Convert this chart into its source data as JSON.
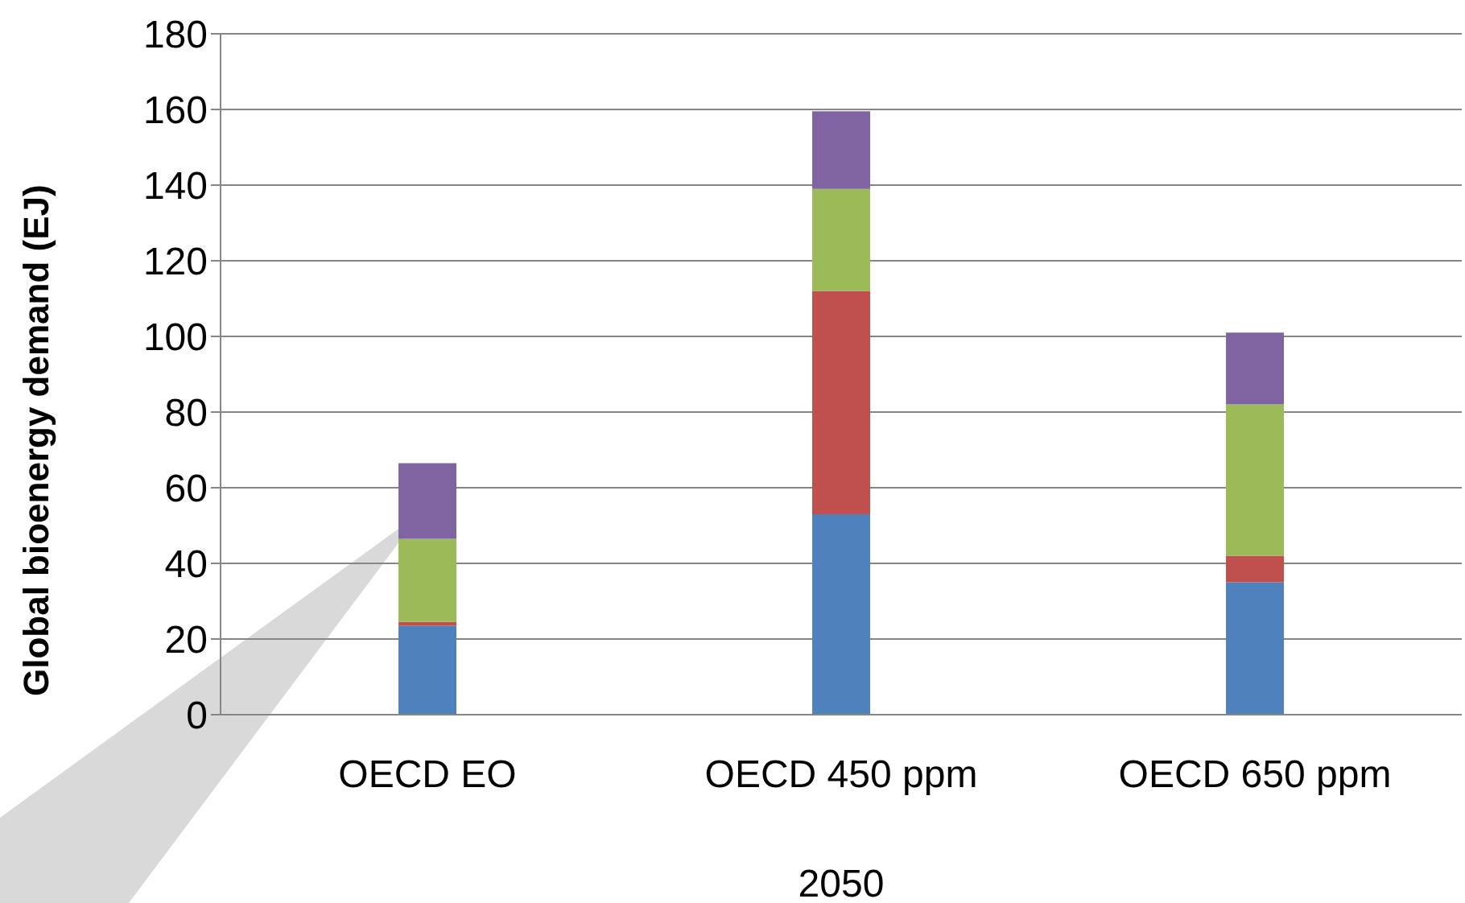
{
  "chart_data": {
    "type": "bar",
    "stacked": true,
    "ylabel": "Global bioenergy demand (EJ)",
    "xlabel": "2050",
    "categories": [
      "OECD EO",
      "OECD 450 ppm",
      "OECD 650 ppm"
    ],
    "series": [
      {
        "color": "#4f81bd",
        "values": [
          23.5,
          53,
          35
        ]
      },
      {
        "color": "#c0504d",
        "values": [
          1,
          59,
          7
        ]
      },
      {
        "color": "#9bbb59",
        "values": [
          22,
          27,
          40
        ]
      },
      {
        "color": "#8064a2",
        "values": [
          20,
          20.5,
          19
        ]
      }
    ],
    "ylim": [
      0,
      180
    ],
    "yticks": [
      0,
      20,
      40,
      60,
      80,
      100,
      120,
      140,
      160,
      180
    ],
    "grid": "y",
    "legend": false
  }
}
